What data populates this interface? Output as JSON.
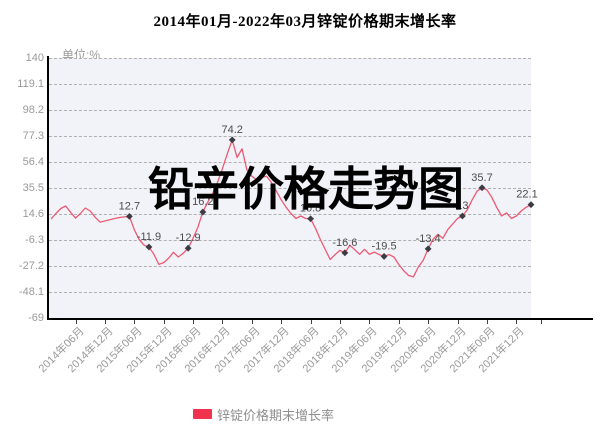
{
  "title": "2014年01月-2022年03月锌锭价格期末增长率",
  "unit_label": "单位:%",
  "watermark": "铅辛价格走势图",
  "legend": {
    "label": "锌锭价格期末增长率",
    "swatch_color": "#f0334d"
  },
  "colors": {
    "line": "#ee5a72",
    "marker": "#3b3b42",
    "plot_background": "#f2f3f9",
    "gridline": "#b0b0b0",
    "axis": "#000000",
    "tick_text": "#9a9a9a",
    "point_label_text": "#4b4b4b"
  },
  "chart_data": {
    "type": "line",
    "title": "2014年01月-2022年03月锌锭价格期末增长率",
    "ylabel": "单位:%",
    "ylim": [
      -69,
      140
    ],
    "yticks": [
      140,
      119.1,
      98.2,
      77.3,
      56.4,
      35.5,
      14.6,
      -6.3,
      -27.2,
      -48.1,
      -69
    ],
    "grid": "dashed-horizontal",
    "legend_position": "bottom",
    "x_start": "2014-01",
    "x_end": "2022-03",
    "x_points": 99,
    "xticklabels": [
      "2014年06月",
      "2014年12月",
      "2015年06月",
      "2015年12月",
      "2016年06月",
      "2016年12月",
      "2017年06月",
      "2017年12月",
      "2018年06月",
      "2018年12月",
      "2019年06月",
      "2019年12月",
      "2020年06月",
      "2020年12月",
      "2021年06月",
      "2021年12月"
    ],
    "xtick_first_index": 5,
    "xtick_step": 6,
    "series": [
      {
        "name": "锌锭价格期末增长率",
        "color": "#ee5a72",
        "values": [
          10.5,
          15,
          19,
          21,
          16,
          11.3,
          15,
          19.4,
          17,
          12,
          8.1,
          9,
          10,
          11,
          11.8,
          12.3,
          12.7,
          2,
          -6,
          -10.5,
          -11.9,
          -17.8,
          -25.9,
          -24.5,
          -21,
          -16.2,
          -20,
          -17,
          -12.9,
          -5,
          4,
          16.2,
          24,
          31,
          40,
          51,
          63,
          74.2,
          60,
          67,
          50,
          45,
          42,
          44,
          45,
          40,
          33,
          26,
          20,
          15,
          11,
          13,
          11,
          10.8,
          3,
          -6,
          -14,
          -22,
          -18,
          -14.6,
          -16.6,
          -10.5,
          -14,
          -17.8,
          -13.8,
          -17.8,
          -16,
          -18,
          -19.5,
          -18,
          -20,
          -26,
          -31,
          -34.8,
          -36,
          -28,
          -22.7,
          -13.4,
          -5.7,
          -1.6,
          -5,
          2,
          6.5,
          11,
          13,
          18,
          26,
          33,
          35.7,
          34,
          28,
          20,
          13,
          15.5,
          11,
          13,
          17,
          20,
          22.1
        ]
      }
    ],
    "annotations": [
      {
        "index": 16,
        "label": "12.7"
      },
      {
        "index": 20,
        "label": "-11.9"
      },
      {
        "index": 28,
        "label": "-12.9"
      },
      {
        "index": 31,
        "label": "16.2"
      },
      {
        "index": 37,
        "label": "74.2"
      },
      {
        "index": 53,
        "label": "10.8"
      },
      {
        "index": 60,
        "label": "-16.6"
      },
      {
        "index": 68,
        "label": "-19.5"
      },
      {
        "index": 77,
        "label": "-13.4"
      },
      {
        "index": 84,
        "label": "13"
      },
      {
        "index": 88,
        "label": "35.7"
      },
      {
        "index": 98,
        "label": "22.1"
      }
    ]
  }
}
